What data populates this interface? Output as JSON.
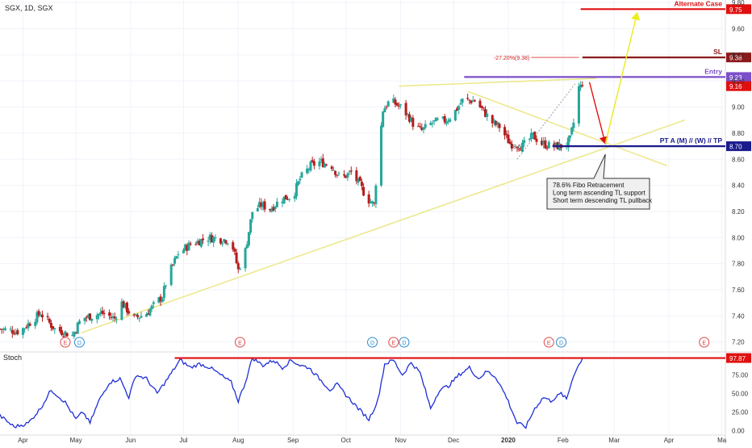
{
  "header": {
    "symbol_text": "SGX, 1D, SGX"
  },
  "indicator": {
    "label": "Stoch"
  },
  "colors": {
    "up": "#26a69a",
    "down": "#b71c1c",
    "stoch": "#1f2fd6",
    "trend": "#ece88c",
    "entry": "#7b4fc9",
    "sl": "#8b1a1a",
    "alt": "#e01010",
    "pt": "#1a1a8c",
    "arrow_up": "#ecec1a",
    "arrow_down": "#e01010",
    "grid": "#f0f3fa"
  },
  "chart_data": {
    "type": "candlestick",
    "price_axis": {
      "range": [
        7.13,
        9.82
      ],
      "ticks": [
        "7.20",
        "7.40",
        "7.60",
        "7.80",
        "8.00",
        "8.20",
        "8.40",
        "8.60",
        "8.80",
        "9.00",
        "9.20",
        "9.40",
        "9.60",
        "9.80"
      ]
    },
    "x_ticks": [
      {
        "label": "Apr",
        "day": 0
      },
      {
        "label": "May",
        "day": 30
      },
      {
        "label": "Jun",
        "day": 61
      },
      {
        "label": "Jul",
        "day": 91
      },
      {
        "label": "Aug",
        "day": 122
      },
      {
        "label": "Sep",
        "day": 153
      },
      {
        "label": "Oct",
        "day": 183
      },
      {
        "label": "Nov",
        "day": 214
      },
      {
        "label": "Dec",
        "day": 244
      },
      {
        "label": "2020",
        "day": 275
      },
      {
        "label": "Feb",
        "day": 306
      },
      {
        "label": "Mar",
        "day": 335
      },
      {
        "label": "Apr",
        "day": 366
      },
      {
        "label": "Ma",
        "day": 396
      }
    ],
    "x_range": [
      -13,
      398
    ],
    "price_keypoints": [
      [
        -13,
        7.3
      ],
      [
        -2,
        7.28
      ],
      [
        10,
        7.42
      ],
      [
        18,
        7.3
      ],
      [
        28,
        7.25
      ],
      [
        33,
        7.38
      ],
      [
        45,
        7.42
      ],
      [
        52,
        7.38
      ],
      [
        56,
        7.5
      ],
      [
        63,
        7.38
      ],
      [
        70,
        7.42
      ],
      [
        79,
        7.55
      ],
      [
        82,
        7.7
      ],
      [
        88,
        7.88
      ],
      [
        95,
        7.95
      ],
      [
        105,
        8.0
      ],
      [
        118,
        7.98
      ],
      [
        122,
        7.75
      ],
      [
        126,
        7.9
      ],
      [
        130,
        8.2
      ],
      [
        135,
        8.25
      ],
      [
        140,
        8.22
      ],
      [
        147,
        8.3
      ],
      [
        153,
        8.32
      ],
      [
        157,
        8.45
      ],
      [
        163,
        8.55
      ],
      [
        168,
        8.58
      ],
      [
        175,
        8.55
      ],
      [
        180,
        8.45
      ],
      [
        186,
        8.5
      ],
      [
        191,
        8.4
      ],
      [
        195,
        8.3
      ],
      [
        199,
        8.25
      ],
      [
        201,
        8.6
      ],
      [
        204,
        8.98
      ],
      [
        208,
        9.05
      ],
      [
        214,
        9.0
      ],
      [
        219,
        8.92
      ],
      [
        222,
        8.85
      ],
      [
        226,
        8.82
      ],
      [
        232,
        8.88
      ],
      [
        240,
        8.9
      ],
      [
        244,
        8.95
      ],
      [
        249,
        9.05
      ],
      [
        256,
        9.05
      ],
      [
        262,
        8.95
      ],
      [
        266,
        8.88
      ],
      [
        270,
        8.85
      ],
      [
        276,
        8.72
      ],
      [
        283,
        8.7
      ],
      [
        289,
        8.78
      ],
      [
        294,
        8.72
      ],
      [
        300,
        8.7
      ],
      [
        307,
        8.7
      ],
      [
        310,
        8.75
      ],
      [
        312,
        8.88
      ],
      [
        315,
        9.15
      ],
      [
        317,
        9.16
      ]
    ],
    "stochastic": {
      "range": [
        -5,
        105
      ],
      "ticks": [
        "0.00",
        "25.00",
        "50.00",
        "75.00",
        "97.87"
      ],
      "keypoints": [
        [
          -13,
          20
        ],
        [
          -5,
          5
        ],
        [
          3,
          10
        ],
        [
          10,
          30
        ],
        [
          16,
          55
        ],
        [
          24,
          38
        ],
        [
          30,
          15
        ],
        [
          34,
          25
        ],
        [
          38,
          10
        ],
        [
          43,
          40
        ],
        [
          49,
          65
        ],
        [
          55,
          70
        ],
        [
          60,
          45
        ],
        [
          64,
          75
        ],
        [
          70,
          70
        ],
        [
          76,
          50
        ],
        [
          82,
          70
        ],
        [
          89,
          95
        ],
        [
          95,
          85
        ],
        [
          100,
          90
        ],
        [
          106,
          85
        ],
        [
          112,
          75
        ],
        [
          118,
          65
        ],
        [
          122,
          40
        ],
        [
          126,
          65
        ],
        [
          130,
          98
        ],
        [
          136,
          88
        ],
        [
          142,
          95
        ],
        [
          147,
          85
        ],
        [
          152,
          95
        ],
        [
          157,
          88
        ],
        [
          162,
          85
        ],
        [
          168,
          70
        ],
        [
          174,
          55
        ],
        [
          178,
          62
        ],
        [
          183,
          48
        ],
        [
          190,
          30
        ],
        [
          196,
          15
        ],
        [
          201,
          40
        ],
        [
          205,
          90
        ],
        [
          210,
          95
        ],
        [
          215,
          75
        ],
        [
          220,
          92
        ],
        [
          225,
          78
        ],
        [
          231,
          30
        ],
        [
          236,
          55
        ],
        [
          241,
          60
        ],
        [
          247,
          75
        ],
        [
          253,
          85
        ],
        [
          258,
          70
        ],
        [
          263,
          80
        ],
        [
          268,
          72
        ],
        [
          274,
          45
        ],
        [
          280,
          10
        ],
        [
          285,
          5
        ],
        [
          290,
          30
        ],
        [
          295,
          45
        ],
        [
          299,
          40
        ],
        [
          305,
          50
        ],
        [
          308,
          42
        ],
        [
          312,
          75
        ],
        [
          317,
          98
        ]
      ]
    }
  },
  "levels": [
    {
      "name": "alternate-case",
      "label": "Alternate Case",
      "value": 9.75,
      "badge": "9.75",
      "color_key": "alt"
    },
    {
      "name": "sl",
      "label": "SL",
      "value": 9.38,
      "badge": "9.38",
      "color_key": "sl"
    },
    {
      "name": "entry",
      "label": "Entry",
      "value": 9.23,
      "badge": "9.23",
      "color_key": "entry"
    },
    {
      "name": "pt",
      "label": "PT A (M) // (W) // TP",
      "value": 8.7,
      "badge": "8.70",
      "color_key": "pt"
    }
  ],
  "current_price_badge": {
    "value": 9.16,
    "label": "9.16"
  },
  "stoch_badge": {
    "value": 97.87,
    "label": "97.87"
  },
  "annotations": {
    "fib_left_text": "-27.20%(9.38)",
    "fib_mid_text": "78.6",
    "callout_lines": [
      "78.6% Fibo Retracement",
      "Long term ascending TL support",
      "Short term descending TL pullback"
    ]
  },
  "event_markers": [
    {
      "letter": "E",
      "day": 24,
      "type": "earnings"
    },
    {
      "letter": "D",
      "day": 32,
      "type": "dividend"
    },
    {
      "letter": "E",
      "day": 123,
      "type": "earnings"
    },
    {
      "letter": "D",
      "day": 198,
      "type": "dividend"
    },
    {
      "letter": "E",
      "day": 210,
      "type": "earnings"
    },
    {
      "letter": "D",
      "day": 216,
      "type": "dividend"
    },
    {
      "letter": "E",
      "day": 298,
      "type": "earnings"
    },
    {
      "letter": "D",
      "day": 305,
      "type": "dividend"
    },
    {
      "letter": "E",
      "day": 386,
      "type": "earnings"
    }
  ]
}
